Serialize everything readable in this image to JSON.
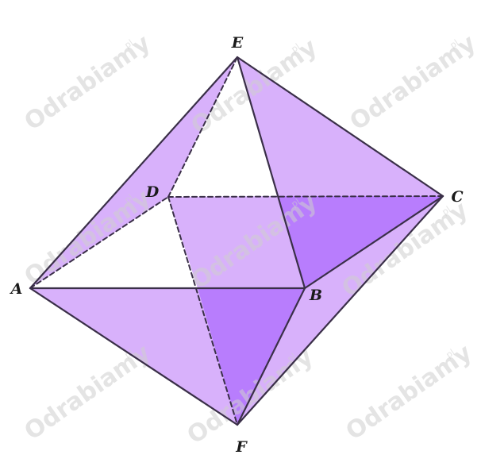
{
  "figure": {
    "vertices": {
      "A": "A",
      "B": "B",
      "C": "C",
      "D": "D",
      "E": "E",
      "F": "F"
    },
    "colors": {
      "face_light": "#d8b1fb",
      "face_dark": "#b87dfd",
      "edge": "#3a2f48"
    }
  },
  "watermark": {
    "brand": "Odrabiamy",
    "suffix": "pl"
  }
}
